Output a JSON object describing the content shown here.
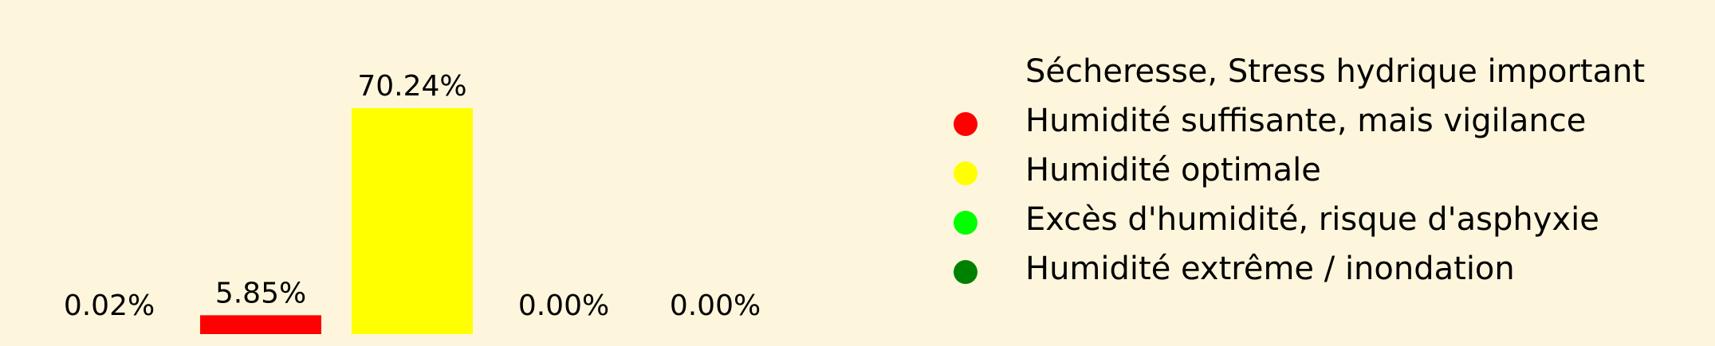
{
  "chart_data": {
    "type": "bar",
    "categories": [
      "Sécheresse, Stress hydrique important",
      "Humidité suffisante, mais vigilance",
      "Humidité optimale",
      "Excès d'humidité, risque d'asphyxie",
      "Humidité extrême / inondation"
    ],
    "values": [
      0.02,
      5.85,
      70.24,
      0.0,
      0.0
    ],
    "value_labels": [
      "0.02%",
      "5.85%",
      "70.24%",
      "0.00%",
      "0.00%"
    ],
    "colors": [
      "#fdf6dc",
      "#ff0000",
      "#ffff00",
      "#00ff00",
      "#008000"
    ],
    "ylim": [
      0,
      70.24
    ],
    "grid": false,
    "axes_visible": false,
    "legend": {
      "placement": "right",
      "entries": [
        {
          "label": "Sécheresse, Stress hydrique important",
          "color": "#fdf6dc"
        },
        {
          "label": "Humidité suffisante, mais vigilance",
          "color": "#ff0000"
        },
        {
          "label": "Humidité optimale",
          "color": "#ffff00"
        },
        {
          "label": "Excès d'humidité, risque d'asphyxie",
          "color": "#00ff00"
        },
        {
          "label": "Humidité extrême / inondation",
          "color": "#008000"
        }
      ]
    }
  },
  "colors": {
    "background": "#fdf6dc",
    "text": "#000000"
  }
}
